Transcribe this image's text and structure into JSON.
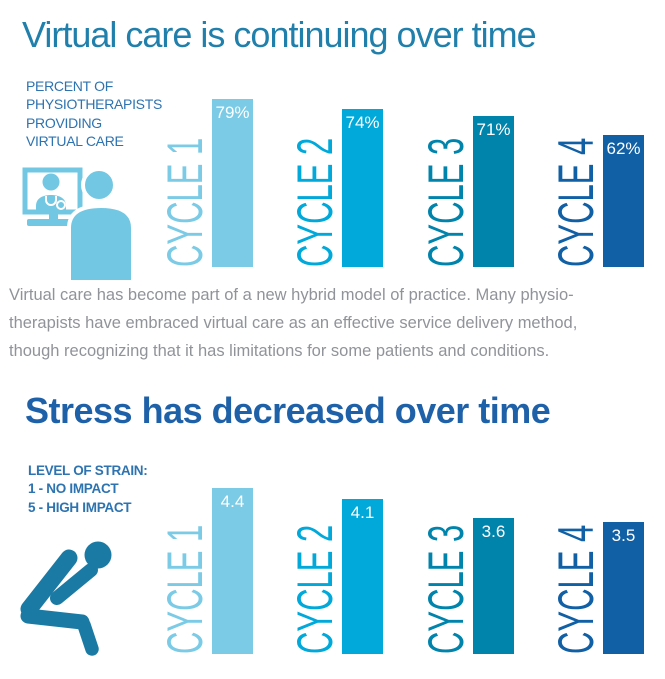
{
  "infographic": {
    "section_virtual_care": {
      "title": "Virtual care is continuing over time",
      "y_axis_note_lines": [
        "PERCENT OF",
        "PHYSIOTHERAPISTS",
        "PROVIDING",
        "VIRTUAL CARE"
      ],
      "icon": "telehealth-video-call-icon",
      "caption_lines": [
        "Virtual care has become part of a new hybrid model of practice. Many physio-",
        "therapists have embraced virtual care as an effective service delivery method,",
        "though recognizing that it has limitations for some patients and conditions."
      ]
    },
    "section_stress": {
      "title": "Stress has decreased over time",
      "y_axis_note_lines": [
        "LEVEL OF STRAIN:",
        "1 - NO IMPACT",
        "5 - HIGH IMPACT"
      ],
      "icon": "stressed-person-icon"
    }
  },
  "chart_data": [
    {
      "type": "bar",
      "title": "Virtual care is continuing over time",
      "ylabel": "PERCENT OF PHYSIOTHERAPISTS PROVIDING VIRTUAL CARE",
      "xlabel": "",
      "categories": [
        "CYCLE 1",
        "CYCLE 2",
        "CYCLE 3",
        "CYCLE 4"
      ],
      "values": [
        79,
        74,
        71,
        62
      ],
      "value_labels": [
        "79%",
        "74%",
        "71%",
        "62%"
      ],
      "ylim": [
        0,
        100
      ],
      "grid": false,
      "legend": "none",
      "bar_colors": [
        "#7bcbe6",
        "#00a9da",
        "#0084ac",
        "#1160a5"
      ],
      "category_label_colors": [
        "#7bcbe6",
        "#00a9da",
        "#0084ac",
        "#1160a5"
      ],
      "value_label_color": "#ffffff"
    },
    {
      "type": "bar",
      "title": "Stress has decreased over time",
      "ylabel": "LEVEL OF STRAIN: 1 - NO IMPACT 5 - HIGH IMPACT",
      "xlabel": "",
      "categories": [
        "CYCLE 1",
        "CYCLE 2",
        "CYCLE 3",
        "CYCLE 4"
      ],
      "values": [
        4.4,
        4.1,
        3.6,
        3.5
      ],
      "value_labels": [
        "4.4",
        "4.1",
        "3.6",
        "3.5"
      ],
      "ylim": [
        0,
        5
      ],
      "grid": false,
      "legend": "none",
      "bar_colors": [
        "#7bcbe6",
        "#00a9da",
        "#0084ac",
        "#1160a5"
      ],
      "category_label_colors": [
        "#7bcbe6",
        "#00a9da",
        "#0084ac",
        "#1160a5"
      ],
      "value_label_color": "#ffffff"
    }
  ],
  "colors": {
    "title_virtual_care": "#2080ab",
    "title_stress": "#1f61a8",
    "axis_note": "#2d73b0",
    "caption": "#909399",
    "telehealth_icon": "#72c7e3",
    "stressed_icon": "#1b7aa3",
    "background": "#ffffff"
  }
}
